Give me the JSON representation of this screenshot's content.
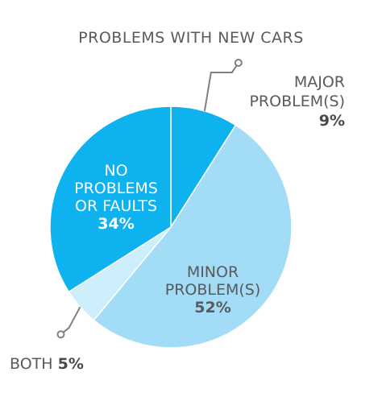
{
  "chart_data": {
    "type": "pie",
    "title": "PROBLEMS WITH NEW CARS",
    "slices": [
      {
        "label": "MAJOR PROBLEM(S)",
        "label_lines": [
          "MAJOR",
          "PROBLEM(S)"
        ],
        "value": 9,
        "value_text": "9%",
        "color": "#0EB2EE"
      },
      {
        "label": "MINOR PROBLEM(S)",
        "label_lines": [
          "MINOR",
          "PROBLEM(S)"
        ],
        "value": 52,
        "value_text": "52%",
        "color": "#A3DCF6"
      },
      {
        "label": "BOTH",
        "label_lines": [
          "BOTH"
        ],
        "value": 5,
        "value_text": "5%",
        "color": "#CDEEFB"
      },
      {
        "label": "NO PROBLEMS OR FAULTS",
        "label_lines": [
          "NO",
          "PROBLEMS",
          "OR FAULTS"
        ],
        "value": 34,
        "value_text": "34%",
        "color": "#0EB2EE"
      }
    ],
    "label_color": "#5A5A5A",
    "inside_label_color_dark": "#FFFFFF",
    "inside_label_color_light": "#5A5A5A",
    "leader_color": "#808080"
  }
}
